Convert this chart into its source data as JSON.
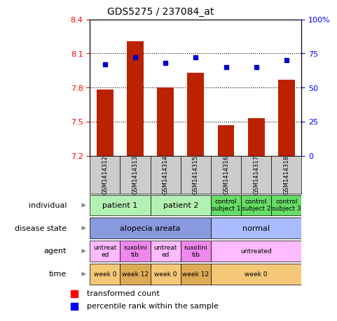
{
  "title": "GDS5275 / 237084_at",
  "samples": [
    "GSM1414312",
    "GSM1414313",
    "GSM1414314",
    "GSM1414315",
    "GSM1414316",
    "GSM1414317",
    "GSM1414318"
  ],
  "bar_values": [
    7.78,
    8.21,
    7.8,
    7.93,
    7.47,
    7.53,
    7.87
  ],
  "dot_values": [
    67,
    72,
    68,
    72,
    65,
    65,
    70
  ],
  "ylim_left": [
    7.2,
    8.4
  ],
  "ylim_right": [
    0,
    100
  ],
  "yticks_left": [
    7.2,
    7.5,
    7.8,
    8.1,
    8.4
  ],
  "yticks_right": [
    0,
    25,
    50,
    75,
    100
  ],
  "bar_color": "#bb2200",
  "dot_color": "#0000cc",
  "bar_width": 0.55,
  "rows": [
    {
      "label": "individual",
      "cells": [
        {
          "text": "patient 1",
          "span": 2,
          "color": "#b3f0b3",
          "fontsize": 8
        },
        {
          "text": "patient 2",
          "span": 2,
          "color": "#b3f0b3",
          "fontsize": 8
        },
        {
          "text": "control\nsubject 1",
          "span": 1,
          "color": "#66dd66",
          "fontsize": 6.5
        },
        {
          "text": "control\nsubject 2",
          "span": 1,
          "color": "#66dd66",
          "fontsize": 6.5
        },
        {
          "text": "control\nsubject 3",
          "span": 1,
          "color": "#66dd66",
          "fontsize": 6.5
        }
      ]
    },
    {
      "label": "disease state",
      "cells": [
        {
          "text": "alopecia areata",
          "span": 4,
          "color": "#8899dd",
          "fontsize": 8
        },
        {
          "text": "normal",
          "span": 3,
          "color": "#aabbff",
          "fontsize": 8
        }
      ]
    },
    {
      "label": "agent",
      "cells": [
        {
          "text": "untreat\ned",
          "span": 1,
          "color": "#ffbbff",
          "fontsize": 6.5
        },
        {
          "text": "ruxolini\ntib",
          "span": 1,
          "color": "#ee88ee",
          "fontsize": 6.5
        },
        {
          "text": "untreat\ned",
          "span": 1,
          "color": "#ffbbff",
          "fontsize": 6.5
        },
        {
          "text": "ruxolini\ntib",
          "span": 1,
          "color": "#ee88ee",
          "fontsize": 6.5
        },
        {
          "text": "untreated",
          "span": 3,
          "color": "#ffbbff",
          "fontsize": 6.5
        }
      ]
    },
    {
      "label": "time",
      "cells": [
        {
          "text": "week 0",
          "span": 1,
          "color": "#f5c878",
          "fontsize": 6.5
        },
        {
          "text": "week 12",
          "span": 1,
          "color": "#ddaa55",
          "fontsize": 6.5
        },
        {
          "text": "week 0",
          "span": 1,
          "color": "#f5c878",
          "fontsize": 6.5
        },
        {
          "text": "week 12",
          "span": 1,
          "color": "#ddaa55",
          "fontsize": 6.5
        },
        {
          "text": "week 0",
          "span": 3,
          "color": "#f5c878",
          "fontsize": 6.5
        }
      ]
    }
  ]
}
